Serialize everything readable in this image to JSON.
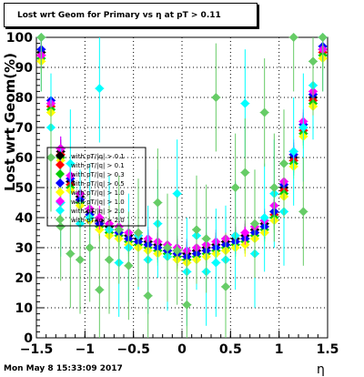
{
  "title": "Lost wrt Geom for Primary vs   η at pT > 0.11",
  "footer": "Mon May  8 15:33:09 2017",
  "chart_data": {
    "type": "scatter",
    "xlabel": "η",
    "ylabel": "Lost wrt Geom(%)",
    "xlim": [
      -1.5,
      1.5
    ],
    "ylim": [
      0,
      100
    ],
    "x_ticks": [
      "−1.5",
      "−1",
      "−0.5",
      "0",
      "0.5",
      "1",
      "1.5"
    ],
    "y_ticks": [
      "0",
      "10",
      "20",
      "30",
      "40",
      "50",
      "60",
      "70",
      "80",
      "90",
      "100"
    ],
    "grid": true,
    "legend_position": "left-center",
    "x": [
      -1.45,
      -1.35,
      -1.25,
      -1.15,
      -1.05,
      -0.95,
      -0.85,
      -0.75,
      -0.65,
      -0.55,
      -0.45,
      -0.35,
      -0.25,
      -0.15,
      -0.05,
      0.05,
      0.15,
      0.25,
      0.35,
      0.45,
      0.55,
      0.65,
      0.75,
      0.85,
      0.95,
      1.05,
      1.15,
      1.25,
      1.35,
      1.45
    ],
    "series": [
      {
        "name": "with pT/|q| > 0.1",
        "color": "#000000",
        "values": [
          95,
          78,
          62,
          52,
          47,
          42,
          39,
          37,
          36,
          34,
          33,
          32,
          31,
          30,
          29,
          28,
          29,
          30,
          31,
          32,
          33,
          34,
          36,
          38,
          42,
          50,
          60,
          70,
          80,
          96
        ]
      },
      {
        "name": "with pT/|q| > 0.1",
        "color": "#ff0000",
        "values": [
          94,
          77,
          61,
          51,
          46,
          41,
          38,
          36,
          35,
          33,
          32,
          31,
          30,
          29,
          28,
          27,
          28,
          29,
          30,
          31,
          32,
          33,
          35,
          37,
          41,
          49,
          59,
          69,
          79,
          95
        ]
      },
      {
        "name": "with pT/|q| > 0.3",
        "color": "#00cc00",
        "values": [
          93,
          76,
          60,
          50,
          45,
          40,
          37,
          35,
          34,
          32,
          31,
          30,
          29,
          28,
          27,
          26,
          27,
          28,
          29,
          30,
          31,
          32,
          34,
          36,
          40,
          48,
          58,
          68,
          78,
          94
        ]
      },
      {
        "name": "with pT/|q| > 0.5",
        "color": "#0000ff",
        "values": [
          96,
          79,
          63,
          53,
          46,
          41,
          38,
          36,
          35,
          33,
          32,
          31,
          30,
          29,
          28,
          27,
          28,
          29,
          30,
          31,
          32,
          33,
          35,
          37,
          42,
          51,
          61,
          71,
          81,
          97
        ]
      },
      {
        "name": "with pT/|q| > 1.0",
        "color": "#ffff00",
        "values": [
          92,
          75,
          59,
          49,
          44,
          39,
          36,
          34,
          33,
          31,
          30,
          29,
          28,
          27,
          26,
          25,
          26,
          27,
          28,
          29,
          30,
          31,
          33,
          35,
          39,
          47,
          57,
          67,
          77,
          93
        ]
      },
      {
        "name": "with pT/|q| > 1.0",
        "color": "#ff00ff",
        "values": [
          94,
          78,
          63,
          54,
          48,
          43,
          40,
          38,
          37,
          35,
          34,
          33,
          32,
          31,
          30,
          29,
          30,
          31,
          32,
          33,
          34,
          35,
          37,
          39,
          44,
          52,
          62,
          72,
          82,
          96
        ]
      },
      {
        "name": "with pT/|q| > 2.0",
        "color": "#00ffff",
        "values": [
          100,
          70,
          45,
          58,
          38,
          40,
          83,
          36,
          25,
          30,
          34,
          26,
          38,
          27,
          48,
          22,
          34,
          22,
          25,
          26,
          34,
          78,
          28,
          40,
          48,
          42,
          62,
          70,
          84,
          100
        ]
      },
      {
        "name": "with pT/|q| > 2.0",
        "color": "#66cc66",
        "values": [
          100,
          60,
          37,
          28,
          26,
          30,
          16,
          26,
          36,
          24,
          35,
          14,
          45,
          30,
          29,
          11,
          36,
          33,
          80,
          17,
          50,
          55,
          38,
          75,
          50,
          58,
          100,
          42,
          92,
          100
        ]
      }
    ]
  }
}
